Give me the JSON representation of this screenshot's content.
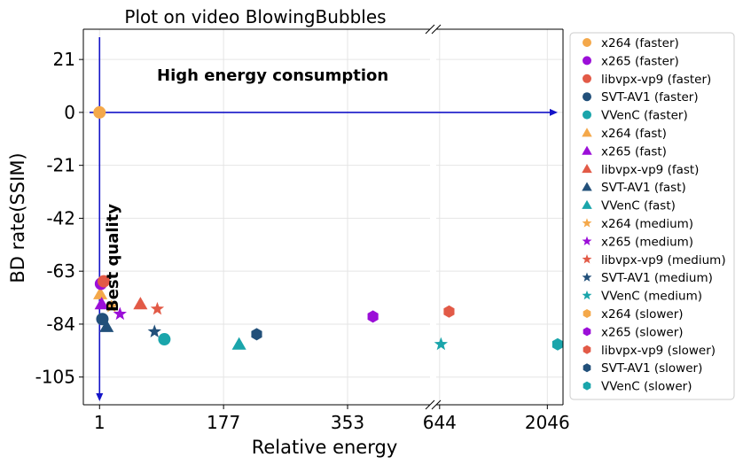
{
  "chart_data": {
    "type": "scatter",
    "title": "Plot on video BlowingBubbles",
    "xlabel": "Relative energy",
    "ylabel": "BD rate(SSIM)",
    "ylim": [
      -116,
      33
    ],
    "x_segments": [
      {
        "range": [
          -22,
          470
        ],
        "ticks": [
          1,
          177,
          353
        ]
      },
      {
        "range": [
          600,
          2250
        ],
        "ticks": [
          644,
          2046
        ]
      }
    ],
    "yticks": [
      21,
      0,
      -21,
      -42,
      -63,
      -84,
      -105
    ],
    "grid": true,
    "legend_position": "outside-right",
    "annotations": [
      {
        "text": "High energy consumption",
        "orientation": "horizontal"
      },
      {
        "text": "Best quality",
        "orientation": "vertical"
      }
    ],
    "series": [
      {
        "name": "x264 (faster)",
        "color": "#f4a84a",
        "marker": "circle",
        "x": 1,
        "y": 0
      },
      {
        "name": "x265 (faster)",
        "color": "#9b0fd8",
        "marker": "circle",
        "x": 3,
        "y": -68
      },
      {
        "name": "libvpx-vp9 (faster)",
        "color": "#e25a47",
        "marker": "circle",
        "x": 7,
        "y": -67
      },
      {
        "name": "SVT-AV1 (faster)",
        "color": "#22507a",
        "marker": "circle",
        "x": 5,
        "y": -82
      },
      {
        "name": "VVenC (faster)",
        "color": "#1aa5ab",
        "marker": "circle",
        "x": 93,
        "y": -90
      },
      {
        "name": "x264 (fast)",
        "color": "#f4a84a",
        "marker": "triangle",
        "x": 2,
        "y": -72
      },
      {
        "name": "x265 (fast)",
        "color": "#9b0fd8",
        "marker": "triangle",
        "x": 4,
        "y": -76
      },
      {
        "name": "libvpx-vp9 (fast)",
        "color": "#e25a47",
        "marker": "triangle",
        "x": 59,
        "y": -76
      },
      {
        "name": "SVT-AV1 (fast)",
        "color": "#22507a",
        "marker": "triangle",
        "x": 11,
        "y": -85
      },
      {
        "name": "VVenC (fast)",
        "color": "#1aa5ab",
        "marker": "triangle",
        "x": 199,
        "y": -92
      },
      {
        "name": "x264 (medium)",
        "color": "#f4a84a",
        "marker": "star",
        "x": 18,
        "y": -77
      },
      {
        "name": "x265 (medium)",
        "color": "#9b0fd8",
        "marker": "star",
        "x": 30,
        "y": -80
      },
      {
        "name": "libvpx-vp9 (medium)",
        "color": "#e25a47",
        "marker": "star",
        "x": 83,
        "y": -78
      },
      {
        "name": "SVT-AV1 (medium)",
        "color": "#22507a",
        "marker": "star",
        "x": 79,
        "y": -87
      },
      {
        "name": "VVenC (medium)",
        "color": "#1aa5ab",
        "marker": "star",
        "x": 662,
        "y": -92
      },
      {
        "name": "x264 (slower)",
        "color": "#f4a84a",
        "marker": "hexagon",
        "x": 1,
        "y": 0
      },
      {
        "name": "x265 (slower)",
        "color": "#9b0fd8",
        "marker": "hexagon",
        "x": 389,
        "y": -81
      },
      {
        "name": "libvpx-vp9 (slower)",
        "color": "#e25a47",
        "marker": "hexagon",
        "x": 497,
        "y": -79
      },
      {
        "name": "SVT-AV1 (slower)",
        "color": "#22507a",
        "marker": "hexagon",
        "x": 224,
        "y": -88
      },
      {
        "name": "VVenC (slower)",
        "color": "#1aa5ab",
        "marker": "hexagon",
        "x": 2180,
        "y": -92
      }
    ]
  }
}
